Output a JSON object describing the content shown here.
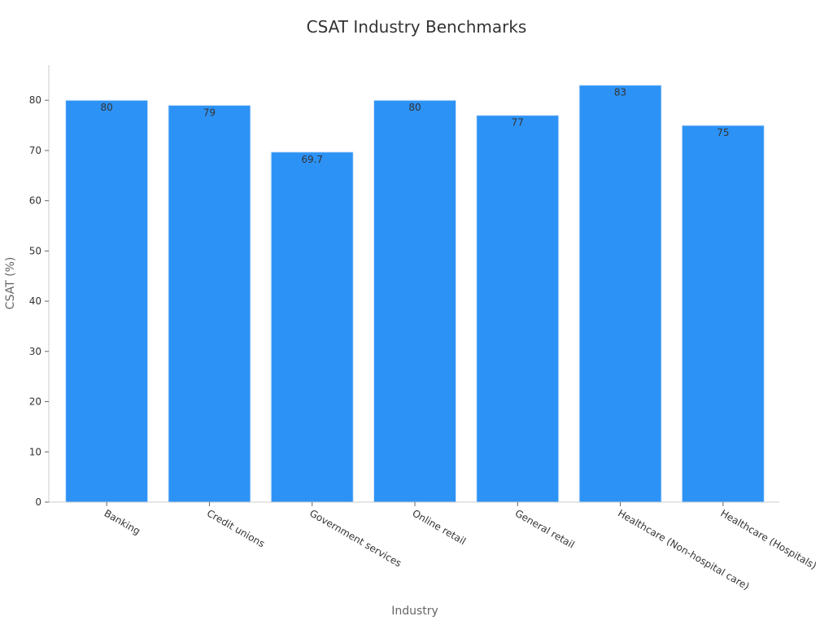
{
  "chart_data": {
    "type": "bar",
    "title": "CSAT Industry Benchmarks",
    "xlabel": "Industry",
    "ylabel": "CSAT (%)",
    "categories": [
      "Banking",
      "Credit unions",
      "Government services",
      "Online retail",
      "General retail",
      "Healthcare (Non-hospital care)",
      "Healthcare (Hospitals)"
    ],
    "values": [
      80,
      79,
      69.7,
      80,
      77,
      83,
      75
    ],
    "value_labels": [
      "80",
      "79",
      "69.7",
      "80",
      "77",
      "83",
      "75"
    ],
    "ylim": [
      0,
      87
    ],
    "yticks": [
      0,
      10,
      20,
      30,
      40,
      50,
      60,
      70,
      80
    ],
    "ytick_labels": [
      "0",
      "10",
      "20",
      "30",
      "40",
      "50",
      "60",
      "70",
      "80"
    ],
    "grid": false,
    "bar_color": "#2d92f5"
  }
}
